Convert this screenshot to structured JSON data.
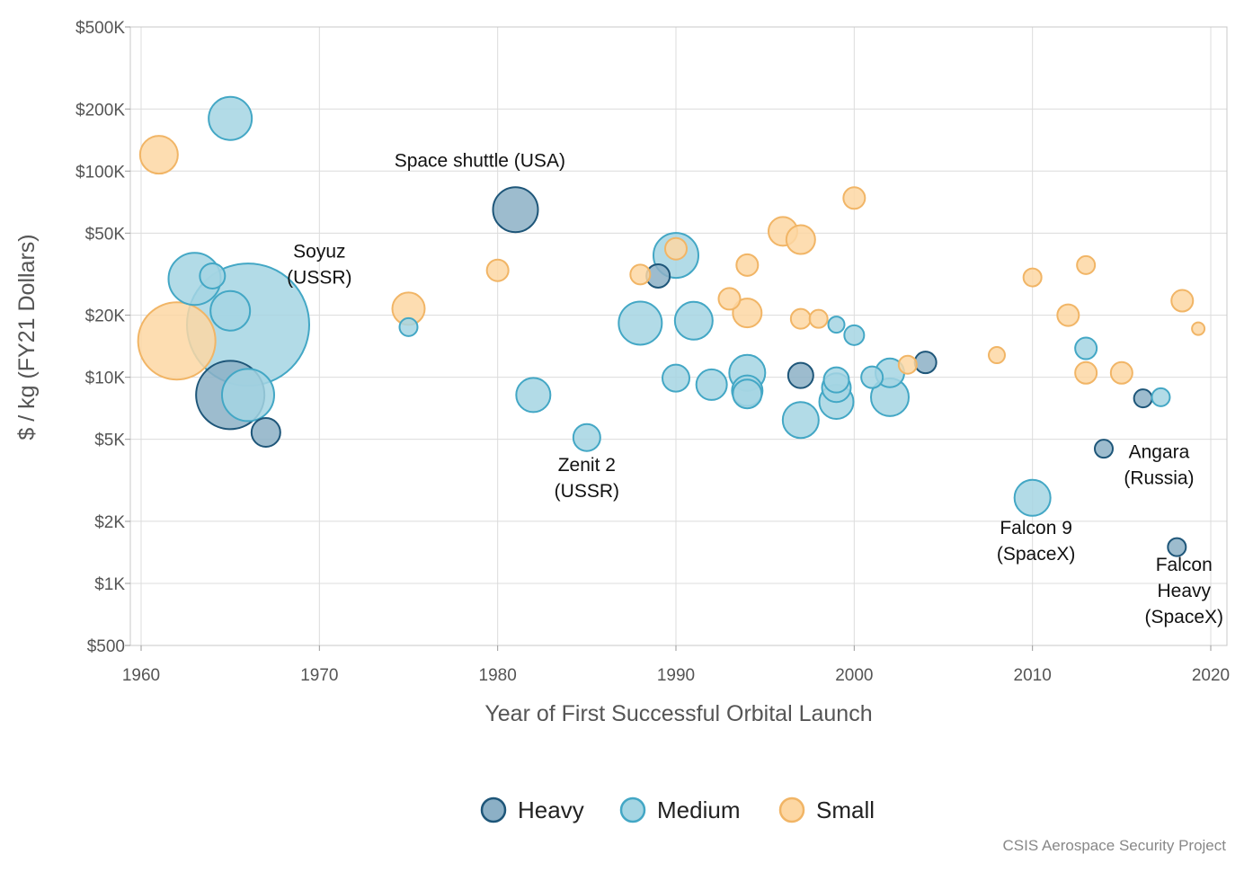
{
  "credit": "CSIS Aerospace Security Project",
  "chart_data": {
    "type": "scatter",
    "title": "",
    "xlabel": "Year of First Successful Orbital Launch",
    "ylabel": "$ / kg (FY21 Dollars)",
    "x_ticks": [
      1960,
      1970,
      1980,
      1990,
      2000,
      2010,
      2020
    ],
    "xlim": [
      1960,
      2021
    ],
    "y_scale": "log",
    "ylim": [
      500,
      500000
    ],
    "y_ticks": [
      {
        "value": 500,
        "label": "$500"
      },
      {
        "value": 1000,
        "label": "$1K"
      },
      {
        "value": 2000,
        "label": "$2K"
      },
      {
        "value": 5000,
        "label": "$5K"
      },
      {
        "value": 10000,
        "label": "$10K"
      },
      {
        "value": 20000,
        "label": "$20K"
      },
      {
        "value": 50000,
        "label": "$50K"
      },
      {
        "value": 100000,
        "label": "$100K"
      },
      {
        "value": 200000,
        "label": "$200K"
      },
      {
        "value": 500000,
        "label": "$500K"
      }
    ],
    "grid": true,
    "legend_position": "bottom",
    "colors": {
      "Heavy": {
        "fill": "#8cb0c6",
        "stroke": "#1e5679"
      },
      "Medium": {
        "fill": "#a5d5e3",
        "stroke": "#43a7c5"
      },
      "Small": {
        "fill": "#fdd7a3",
        "stroke": "#f1b566"
      }
    },
    "series": [
      {
        "name": "Heavy",
        "points": [
          {
            "x": 1965,
            "y": 8200,
            "size": 38
          },
          {
            "x": 1967,
            "y": 5400,
            "size": 16
          },
          {
            "x": 1981,
            "y": 65000,
            "size": 25
          },
          {
            "x": 1989,
            "y": 31000,
            "size": 13
          },
          {
            "x": 1997,
            "y": 10200,
            "size": 14
          },
          {
            "x": 2004,
            "y": 11800,
            "size": 12
          },
          {
            "x": 2016.2,
            "y": 7900,
            "size": 10
          },
          {
            "x": 2014,
            "y": 4500,
            "size": 10
          },
          {
            "x": 2018.1,
            "y": 1500,
            "size": 10
          }
        ]
      },
      {
        "name": "Medium",
        "points": [
          {
            "x": 1965,
            "y": 180000,
            "size": 24
          },
          {
            "x": 1963,
            "y": 30000,
            "size": 29
          },
          {
            "x": 1964,
            "y": 31000,
            "size": 14
          },
          {
            "x": 1965,
            "y": 21000,
            "size": 22
          },
          {
            "x": 1966,
            "y": 18000,
            "size": 68
          },
          {
            "x": 1966,
            "y": 8200,
            "size": 29
          },
          {
            "x": 1975,
            "y": 17500,
            "size": 10
          },
          {
            "x": 1982,
            "y": 8200,
            "size": 19
          },
          {
            "x": 1985,
            "y": 5100,
            "size": 15
          },
          {
            "x": 1988,
            "y": 18300,
            "size": 24
          },
          {
            "x": 1990,
            "y": 39000,
            "size": 25
          },
          {
            "x": 1990,
            "y": 9900,
            "size": 15
          },
          {
            "x": 1991,
            "y": 18800,
            "size": 21
          },
          {
            "x": 1992,
            "y": 9200,
            "size": 17
          },
          {
            "x": 1994,
            "y": 10500,
            "size": 20
          },
          {
            "x": 1994,
            "y": 8600,
            "size": 17
          },
          {
            "x": 1994,
            "y": 8300,
            "size": 16
          },
          {
            "x": 1997,
            "y": 6200,
            "size": 20
          },
          {
            "x": 1999,
            "y": 9700,
            "size": 14
          },
          {
            "x": 1999,
            "y": 8900,
            "size": 16
          },
          {
            "x": 1999,
            "y": 7600,
            "size": 19
          },
          {
            "x": 1999,
            "y": 18000,
            "size": 9
          },
          {
            "x": 2000,
            "y": 16000,
            "size": 11
          },
          {
            "x": 2001,
            "y": 10000,
            "size": 12
          },
          {
            "x": 2002,
            "y": 10500,
            "size": 16
          },
          {
            "x": 2002,
            "y": 8000,
            "size": 21
          },
          {
            "x": 2010,
            "y": 2600,
            "size": 20
          },
          {
            "x": 2013,
            "y": 13800,
            "size": 12
          },
          {
            "x": 2017.2,
            "y": 8000,
            "size": 10
          }
        ]
      },
      {
        "name": "Small",
        "points": [
          {
            "x": 1961,
            "y": 120000,
            "size": 21
          },
          {
            "x": 1962,
            "y": 15000,
            "size": 43
          },
          {
            "x": 1975,
            "y": 21500,
            "size": 18
          },
          {
            "x": 1980,
            "y": 33000,
            "size": 12
          },
          {
            "x": 1988,
            "y": 31500,
            "size": 11
          },
          {
            "x": 1990,
            "y": 42000,
            "size": 12
          },
          {
            "x": 1993,
            "y": 24000,
            "size": 12
          },
          {
            "x": 1994,
            "y": 35000,
            "size": 12
          },
          {
            "x": 1994,
            "y": 20500,
            "size": 16
          },
          {
            "x": 1996,
            "y": 51000,
            "size": 16
          },
          {
            "x": 1997,
            "y": 46500,
            "size": 16
          },
          {
            "x": 1997,
            "y": 19200,
            "size": 11
          },
          {
            "x": 1998,
            "y": 19200,
            "size": 10
          },
          {
            "x": 2000,
            "y": 74000,
            "size": 12
          },
          {
            "x": 2003,
            "y": 11500,
            "size": 10
          },
          {
            "x": 2008,
            "y": 12800,
            "size": 9
          },
          {
            "x": 2010,
            "y": 30500,
            "size": 10
          },
          {
            "x": 2012,
            "y": 20000,
            "size": 12
          },
          {
            "x": 2013,
            "y": 35000,
            "size": 10
          },
          {
            "x": 2013,
            "y": 10500,
            "size": 12
          },
          {
            "x": 2015,
            "y": 10500,
            "size": 12
          },
          {
            "x": 2018.4,
            "y": 23500,
            "size": 12
          },
          {
            "x": 2019.3,
            "y": 17200,
            "size": 7
          }
        ]
      }
    ],
    "annotations": [
      {
        "lines": [
          "Soyuz",
          "(USSR)"
        ],
        "x": 1970,
        "y": 38000
      },
      {
        "lines": [
          "Space shuttle (USA)"
        ],
        "x": 1979,
        "y": 105000
      },
      {
        "lines": [
          "Zenit 2",
          "(USSR)"
        ],
        "x": 1985,
        "y": 3500
      },
      {
        "lines": [
          "Falcon 9",
          "(SpaceX)"
        ],
        "x": 2010.2,
        "y": 1740
      },
      {
        "lines": [
          "Angara",
          "(Russia)"
        ],
        "x": 2017.1,
        "y": 4050
      },
      {
        "lines": [
          "Falcon",
          "Heavy",
          "(SpaceX)"
        ],
        "x": 2018.5,
        "y": 1150
      }
    ]
  }
}
